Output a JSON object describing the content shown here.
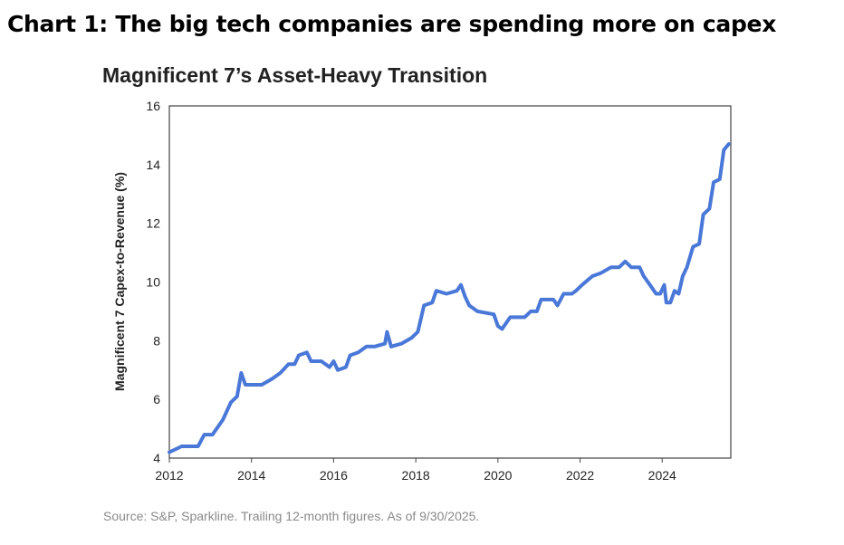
{
  "heading": "Chart 1: The big tech companies are spending more on capex",
  "source": "Source: S&P, Sparkline. Trailing 12-month figures. As of 9/30/2025.",
  "chart_data": {
    "type": "line",
    "title": "Magnificent 7’s Asset-Heavy Transition",
    "xlabel": "",
    "ylabel": "Magnificent 7 Capex-to-Revenue (%)",
    "xlim": [
      2012,
      2025.67
    ],
    "ylim": [
      4,
      16
    ],
    "xticks": [
      "2012",
      "2014",
      "2016",
      "2018",
      "2020",
      "2022",
      "2024"
    ],
    "yticks": [
      "4",
      "6",
      "8",
      "10",
      "12",
      "14",
      "16"
    ],
    "grid": false,
    "color": "#4a78d8",
    "x": [
      2012.0,
      2012.3,
      2012.7,
      2012.85,
      2013.05,
      2013.3,
      2013.5,
      2013.65,
      2013.75,
      2013.85,
      2014.25,
      2014.5,
      2014.7,
      2014.9,
      2015.05,
      2015.15,
      2015.35,
      2015.45,
      2015.7,
      2015.9,
      2016.0,
      2016.1,
      2016.3,
      2016.4,
      2016.6,
      2016.8,
      2017.0,
      2017.25,
      2017.3,
      2017.4,
      2017.65,
      2017.9,
      2018.05,
      2018.2,
      2018.4,
      2018.5,
      2018.75,
      2019.0,
      2019.1,
      2019.2,
      2019.3,
      2019.5,
      2019.9,
      2020.0,
      2020.1,
      2020.3,
      2020.65,
      2020.8,
      2020.95,
      2021.05,
      2021.35,
      2021.45,
      2021.6,
      2021.8,
      2021.9,
      2022.05,
      2022.3,
      2022.5,
      2022.75,
      2022.95,
      2023.1,
      2023.25,
      2023.45,
      2023.55,
      2023.7,
      2023.85,
      2023.95,
      2024.05,
      2024.1,
      2024.2,
      2024.3,
      2024.4,
      2024.5,
      2024.6,
      2024.75,
      2024.9,
      2025.0,
      2025.15,
      2025.25,
      2025.4,
      2025.5,
      2025.62
    ],
    "y": [
      4.2,
      4.4,
      4.4,
      4.8,
      4.8,
      5.3,
      5.9,
      6.1,
      6.9,
      6.5,
      6.5,
      6.7,
      6.9,
      7.2,
      7.2,
      7.5,
      7.6,
      7.3,
      7.3,
      7.1,
      7.3,
      7.0,
      7.1,
      7.5,
      7.6,
      7.8,
      7.8,
      7.9,
      8.3,
      7.8,
      7.9,
      8.1,
      8.3,
      9.2,
      9.3,
      9.7,
      9.6,
      9.7,
      9.9,
      9.5,
      9.2,
      9.0,
      8.9,
      8.5,
      8.4,
      8.8,
      8.8,
      9.0,
      9.0,
      9.4,
      9.4,
      9.2,
      9.6,
      9.6,
      9.7,
      9.9,
      10.2,
      10.3,
      10.5,
      10.5,
      10.7,
      10.5,
      10.5,
      10.2,
      9.9,
      9.6,
      9.6,
      9.9,
      9.3,
      9.3,
      9.7,
      9.6,
      10.2,
      10.5,
      11.2,
      11.3,
      12.3,
      12.5,
      13.4,
      13.5,
      14.5,
      14.7
    ]
  }
}
